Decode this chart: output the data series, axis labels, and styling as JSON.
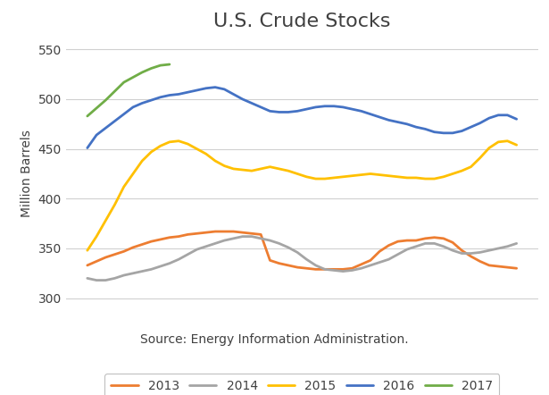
{
  "title": "U.S. Crude Stocks",
  "ylabel": "Million Barrels",
  "source_text": "Source: Energy Information Administration.",
  "ylim": [
    290,
    560
  ],
  "yticks": [
    300,
    350,
    400,
    450,
    500,
    550
  ],
  "background_color": "#ffffff",
  "grid_color": "#d0d0d0",
  "series": {
    "2013": {
      "color": "#ED7D31",
      "data": [
        333,
        337,
        341,
        344,
        347,
        351,
        354,
        357,
        359,
        361,
        362,
        364,
        365,
        366,
        367,
        367,
        367,
        366,
        365,
        364,
        338,
        335,
        333,
        331,
        330,
        329,
        329,
        329,
        329,
        330,
        334,
        338,
        347,
        353,
        357,
        358,
        358,
        360,
        361,
        360,
        356,
        348,
        342,
        337,
        333,
        332,
        331,
        330
      ]
    },
    "2014": {
      "color": "#A5A5A5",
      "data": [
        320,
        318,
        318,
        320,
        323,
        325,
        327,
        329,
        332,
        335,
        339,
        344,
        349,
        352,
        355,
        358,
        360,
        362,
        362,
        360,
        358,
        355,
        351,
        346,
        339,
        333,
        329,
        328,
        327,
        328,
        330,
        333,
        336,
        339,
        344,
        349,
        352,
        355,
        355,
        352,
        348,
        345,
        345,
        346,
        348,
        350,
        352,
        355
      ]
    },
    "2015": {
      "color": "#FFC000",
      "data": [
        348,
        362,
        378,
        394,
        412,
        425,
        438,
        447,
        453,
        457,
        458,
        455,
        450,
        445,
        438,
        433,
        430,
        429,
        428,
        430,
        432,
        430,
        428,
        425,
        422,
        420,
        420,
        421,
        422,
        423,
        424,
        425,
        424,
        423,
        422,
        421,
        421,
        420,
        420,
        422,
        425,
        428,
        432,
        441,
        451,
        457,
        458,
        454
      ]
    },
    "2016": {
      "color": "#4472C4",
      "data": [
        451,
        464,
        471,
        478,
        485,
        492,
        496,
        499,
        502,
        504,
        505,
        507,
        509,
        511,
        512,
        510,
        505,
        500,
        496,
        492,
        488,
        487,
        487,
        488,
        490,
        492,
        493,
        493,
        492,
        490,
        488,
        485,
        482,
        479,
        477,
        475,
        472,
        470,
        467,
        466,
        466,
        468,
        472,
        476,
        481,
        484,
        484,
        480
      ]
    },
    "2017": {
      "color": "#70AD47",
      "data": [
        483,
        491,
        499,
        508,
        517,
        522,
        527,
        531,
        534,
        535,
        null,
        null,
        null,
        null,
        null,
        null,
        null,
        null,
        null,
        null,
        null,
        null,
        null,
        null,
        null,
        null,
        null,
        null,
        null,
        null,
        null,
        null,
        null,
        null,
        null,
        null,
        null,
        null,
        null,
        null,
        null,
        null,
        null,
        null,
        null,
        null,
        null,
        null
      ]
    }
  },
  "legend_order": [
    "2013",
    "2014",
    "2015",
    "2016",
    "2017"
  ],
  "title_fontsize": 16,
  "title_color": "#404040",
  "label_fontsize": 10,
  "tick_fontsize": 10,
  "legend_fontsize": 10,
  "source_fontsize": 10
}
